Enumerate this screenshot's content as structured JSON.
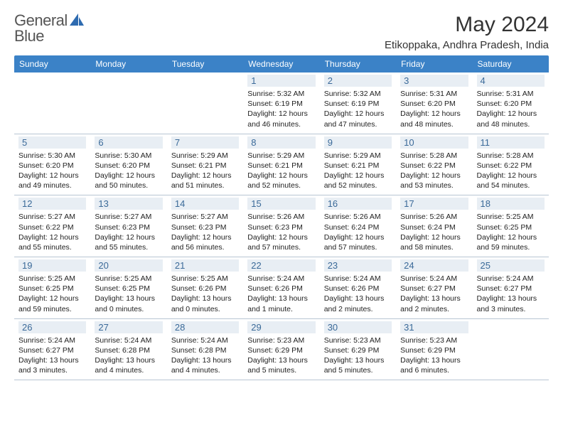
{
  "brand": {
    "name1": "General",
    "name2": "Blue"
  },
  "title": "May 2024",
  "location": "Etikoppaka, Andhra Pradesh, India",
  "colors": {
    "header_bg": "#3b82c7",
    "daynum_bg": "#e8eef4",
    "daynum_fg": "#3b6a99",
    "row_border": "#b8c5d3",
    "text": "#222222"
  },
  "day_headers": [
    "Sunday",
    "Monday",
    "Tuesday",
    "Wednesday",
    "Thursday",
    "Friday",
    "Saturday"
  ],
  "weeks": [
    [
      null,
      null,
      null,
      {
        "n": "1",
        "sr": "5:32 AM",
        "ss": "6:19 PM",
        "dl": "12 hours and 46 minutes."
      },
      {
        "n": "2",
        "sr": "5:32 AM",
        "ss": "6:19 PM",
        "dl": "12 hours and 47 minutes."
      },
      {
        "n": "3",
        "sr": "5:31 AM",
        "ss": "6:20 PM",
        "dl": "12 hours and 48 minutes."
      },
      {
        "n": "4",
        "sr": "5:31 AM",
        "ss": "6:20 PM",
        "dl": "12 hours and 48 minutes."
      }
    ],
    [
      {
        "n": "5",
        "sr": "5:30 AM",
        "ss": "6:20 PM",
        "dl": "12 hours and 49 minutes."
      },
      {
        "n": "6",
        "sr": "5:30 AM",
        "ss": "6:20 PM",
        "dl": "12 hours and 50 minutes."
      },
      {
        "n": "7",
        "sr": "5:29 AM",
        "ss": "6:21 PM",
        "dl": "12 hours and 51 minutes."
      },
      {
        "n": "8",
        "sr": "5:29 AM",
        "ss": "6:21 PM",
        "dl": "12 hours and 52 minutes."
      },
      {
        "n": "9",
        "sr": "5:29 AM",
        "ss": "6:21 PM",
        "dl": "12 hours and 52 minutes."
      },
      {
        "n": "10",
        "sr": "5:28 AM",
        "ss": "6:22 PM",
        "dl": "12 hours and 53 minutes."
      },
      {
        "n": "11",
        "sr": "5:28 AM",
        "ss": "6:22 PM",
        "dl": "12 hours and 54 minutes."
      }
    ],
    [
      {
        "n": "12",
        "sr": "5:27 AM",
        "ss": "6:22 PM",
        "dl": "12 hours and 55 minutes."
      },
      {
        "n": "13",
        "sr": "5:27 AM",
        "ss": "6:23 PM",
        "dl": "12 hours and 55 minutes."
      },
      {
        "n": "14",
        "sr": "5:27 AM",
        "ss": "6:23 PM",
        "dl": "12 hours and 56 minutes."
      },
      {
        "n": "15",
        "sr": "5:26 AM",
        "ss": "6:23 PM",
        "dl": "12 hours and 57 minutes."
      },
      {
        "n": "16",
        "sr": "5:26 AM",
        "ss": "6:24 PM",
        "dl": "12 hours and 57 minutes."
      },
      {
        "n": "17",
        "sr": "5:26 AM",
        "ss": "6:24 PM",
        "dl": "12 hours and 58 minutes."
      },
      {
        "n": "18",
        "sr": "5:25 AM",
        "ss": "6:25 PM",
        "dl": "12 hours and 59 minutes."
      }
    ],
    [
      {
        "n": "19",
        "sr": "5:25 AM",
        "ss": "6:25 PM",
        "dl": "12 hours and 59 minutes."
      },
      {
        "n": "20",
        "sr": "5:25 AM",
        "ss": "6:25 PM",
        "dl": "13 hours and 0 minutes."
      },
      {
        "n": "21",
        "sr": "5:25 AM",
        "ss": "6:26 PM",
        "dl": "13 hours and 0 minutes."
      },
      {
        "n": "22",
        "sr": "5:24 AM",
        "ss": "6:26 PM",
        "dl": "13 hours and 1 minute."
      },
      {
        "n": "23",
        "sr": "5:24 AM",
        "ss": "6:26 PM",
        "dl": "13 hours and 2 minutes."
      },
      {
        "n": "24",
        "sr": "5:24 AM",
        "ss": "6:27 PM",
        "dl": "13 hours and 2 minutes."
      },
      {
        "n": "25",
        "sr": "5:24 AM",
        "ss": "6:27 PM",
        "dl": "13 hours and 3 minutes."
      }
    ],
    [
      {
        "n": "26",
        "sr": "5:24 AM",
        "ss": "6:27 PM",
        "dl": "13 hours and 3 minutes."
      },
      {
        "n": "27",
        "sr": "5:24 AM",
        "ss": "6:28 PM",
        "dl": "13 hours and 4 minutes."
      },
      {
        "n": "28",
        "sr": "5:24 AM",
        "ss": "6:28 PM",
        "dl": "13 hours and 4 minutes."
      },
      {
        "n": "29",
        "sr": "5:23 AM",
        "ss": "6:29 PM",
        "dl": "13 hours and 5 minutes."
      },
      {
        "n": "30",
        "sr": "5:23 AM",
        "ss": "6:29 PM",
        "dl": "13 hours and 5 minutes."
      },
      {
        "n": "31",
        "sr": "5:23 AM",
        "ss": "6:29 PM",
        "dl": "13 hours and 6 minutes."
      },
      null
    ]
  ],
  "labels": {
    "sunrise": "Sunrise:",
    "sunset": "Sunset:",
    "daylight": "Daylight:"
  }
}
